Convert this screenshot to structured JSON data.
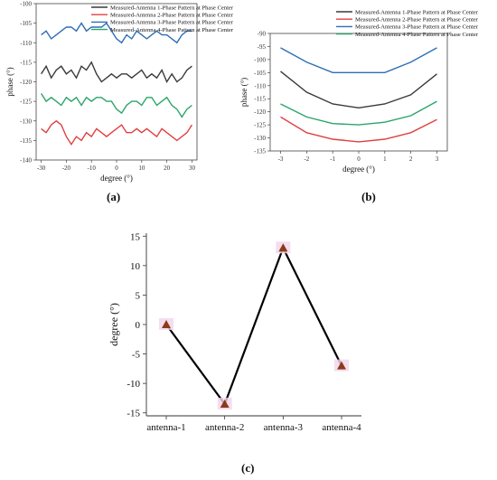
{
  "panels": {
    "a": "(a)",
    "b": "(b)",
    "c": "(c)"
  },
  "chart_data": [
    {
      "type": "line",
      "xlabel": "degree (°)",
      "ylabel": "phase (°)",
      "xlim": [
        -32,
        32
      ],
      "ylim": [
        -140,
        -100
      ],
      "xticks": [
        -30,
        -20,
        -10,
        0,
        10,
        20,
        30
      ],
      "yticks": [
        -100,
        -105,
        -110,
        -115,
        -120,
        -125,
        -130,
        -135,
        -140
      ],
      "legend_position": "top-right",
      "x": [
        -30,
        -28,
        -26,
        -24,
        -22,
        -20,
        -18,
        -16,
        -14,
        -12,
        -10,
        -8,
        -6,
        -4,
        -2,
        0,
        2,
        4,
        6,
        8,
        10,
        12,
        14,
        16,
        18,
        20,
        22,
        24,
        26,
        28,
        30
      ],
      "series": [
        {
          "name": "Measured-Antenna 1-Phase Pattern at Phase Center",
          "color": "#3a3a3a",
          "values": [
            -118,
            -116,
            -119,
            -117,
            -116,
            -118,
            -117,
            -119,
            -116,
            -117,
            -115,
            -118,
            -120,
            -119,
            -118,
            -119,
            -118,
            -118,
            -119,
            -118,
            -117,
            -119,
            -118,
            -119,
            -117,
            -120,
            -118,
            -120,
            -119,
            -117,
            -116
          ]
        },
        {
          "name": "Measured-Antenna 2-Phase Pattern at Phase Center",
          "color": "#e04040",
          "values": [
            -132,
            -133,
            -131,
            -130,
            -131,
            -134,
            -136,
            -134,
            -135,
            -133,
            -134,
            -132,
            -133,
            -134,
            -133,
            -132,
            -131,
            -133,
            -133,
            -132,
            -133,
            -132,
            -133,
            -134,
            -132,
            -133,
            -134,
            -135,
            -134,
            -133,
            -131
          ]
        },
        {
          "name": "Measured-Antenna 3-Phase Pattern at Phase Center",
          "color": "#2e6fb5",
          "values": [
            -108,
            -107,
            -109,
            -108,
            -107,
            -106,
            -106,
            -107,
            -105,
            -107,
            -106,
            -106,
            -106,
            -105,
            -107,
            -109,
            -110,
            -108,
            -109,
            -107,
            -108,
            -109,
            -108,
            -107,
            -108,
            -108,
            -109,
            -110,
            -108,
            -107,
            -107
          ]
        },
        {
          "name": "Measured-Antenna 4-Phase Pattern at Phase Center",
          "color": "#2aa56a",
          "values": [
            -123,
            -125,
            -124,
            -125,
            -126,
            -124,
            -125,
            -124,
            -126,
            -124,
            -125,
            -124,
            -124,
            -125,
            -125,
            -127,
            -128,
            -126,
            -125,
            -125,
            -126,
            -124,
            -124,
            -126,
            -125,
            -124,
            -126,
            -127,
            -129,
            -127,
            -126
          ]
        }
      ]
    },
    {
      "type": "line",
      "xlabel": "degree (°)",
      "ylabel": "phase (°)",
      "xlim": [
        -3.4,
        3.4
      ],
      "ylim": [
        -135,
        -90
      ],
      "xticks": [
        -3,
        -2,
        -1,
        0,
        1,
        2,
        3
      ],
      "yticks": [
        -90,
        -95,
        -100,
        -105,
        -110,
        -115,
        -120,
        -125,
        -130,
        -135
      ],
      "legend_position": "top-right",
      "x": [
        -3,
        -2,
        -1,
        0,
        1,
        2,
        3
      ],
      "series": [
        {
          "name": "Measured-Antenna 1-Phase Pattern at Phase Center",
          "color": "#3a3a3a",
          "values": [
            -104.5,
            -112.5,
            -117,
            -118.5,
            -117,
            -113.5,
            -105.5
          ]
        },
        {
          "name": "Measured-Antenna 2-Phase Pattern at Phase Center",
          "color": "#e04040",
          "values": [
            -122,
            -128,
            -130.5,
            -131.5,
            -130.5,
            -128,
            -123
          ]
        },
        {
          "name": "Measured-Antenna 3-Phase Pattern at Phase Center",
          "color": "#2e6fb5",
          "values": [
            -95.5,
            -101,
            -105,
            -105,
            -105,
            -101,
            -95.5
          ]
        },
        {
          "name": "Measured-Antenna 4-Phase Pattern at Phase Center",
          "color": "#2aa56a",
          "values": [
            -117,
            -122,
            -124.5,
            -125,
            -124,
            -121.5,
            -116
          ]
        }
      ]
    },
    {
      "type": "line",
      "xlabel": "",
      "ylabel": "degree (°)",
      "ylim": [
        -15.5,
        15.5
      ],
      "yticks": [
        15,
        10,
        5,
        0,
        -5,
        -10,
        -15
      ],
      "categories": [
        "antenna-1",
        "antenna-2",
        "antenna-3",
        "antenna-4"
      ],
      "values": [
        0,
        -13.5,
        13,
        -7
      ],
      "line_color": "#000000",
      "marker_color": "#8b3a1a"
    }
  ]
}
